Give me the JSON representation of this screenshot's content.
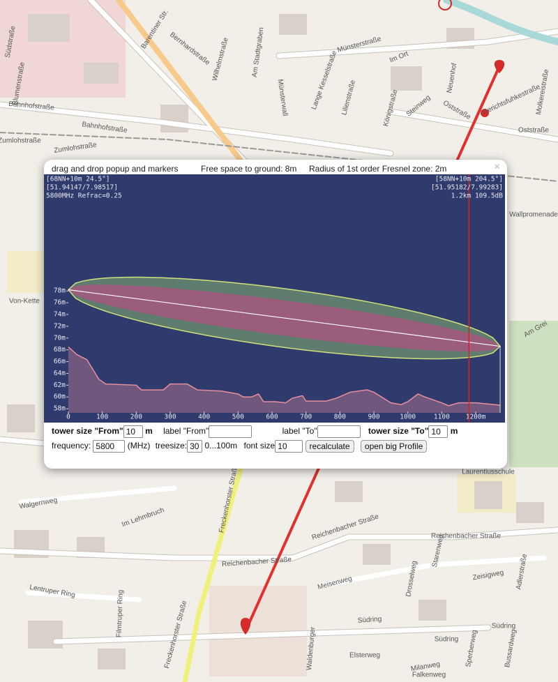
{
  "map": {
    "labels": [
      "Südstraße",
      "Barentiner Str.",
      "Bernhardstraße",
      "Wilhelmstraße",
      "Am Stadtgraben",
      "Münsterstraße",
      "Im Ort",
      "Münsterwall",
      "Lange Kesselstraße",
      "Lilienstraße",
      "Königstraße",
      "Steinweg",
      "Neuenhof",
      "Oststraße",
      "Gerichtsfuhkestraße",
      "Molkereistraße",
      "Oststraße",
      "Blumenstraße",
      "Bahnhofstraße",
      "Bahnhofstraße",
      "Zumlohstraße",
      "Zumlohstraße",
      "Wallpromenade",
      "Am Grei",
      "Von-Kette",
      "Walgernweg",
      "Im Lehmbruch",
      "Freckenhorster Straße",
      "Reichenbacher Straße",
      "Reichenbacher Straße",
      "Reichenbacher Straße",
      "Laurentiusschule",
      "Lentruper Ring",
      "Filmtruper Ring",
      "Freckenhorster Straße",
      "Meisenweg",
      "Drosselweg",
      "Starenweg",
      "Zeisigweg",
      "Adlerstraße",
      "Südring",
      "Südring",
      "Südring",
      "Elsterweg",
      "Milanweg",
      "Falkenweg",
      "Sperberweg",
      "Bussardweg",
      "Waldenburger"
    ]
  },
  "popup": {
    "drag_hint": "drag and drop popup and markers",
    "free_space": "Free space to ground: 8m",
    "fresnel_radius": "Radius of 1st order Fresnel zone: 2m",
    "close": "×",
    "form": {
      "tower_from": "tower size \"From\"",
      "tower_from_value": "10",
      "unit_m_1": "m",
      "label_from": "label \"From\"",
      "label_to": "label \"To\"",
      "tower_to": "tower size \"To\"",
      "tower_to_value": "10",
      "unit_m_2": "m",
      "frequency": "frequency:",
      "frequency_value": "5800",
      "mhz": "(MHz)",
      "treesize": "treesize:",
      "treesize_value": "30",
      "treesize_range": "0...100m",
      "font_size": "font size",
      "font_size_value": "10",
      "recalculate": "recalculate",
      "open_big": "open big Profile"
    }
  },
  "chart_data": {
    "type": "line",
    "info_left": [
      "[68NN+10m 24.5°]",
      "[51.94147/7.98517]",
      "5800MHz Refrac=0.25"
    ],
    "info_right": [
      "[58NN+10m 204.5°]",
      "[51.95182/7.99283]",
      "1.2km 109.5dB"
    ],
    "x": [
      0,
      25,
      55,
      90,
      110,
      200,
      215,
      280,
      300,
      350,
      380,
      450,
      500,
      515,
      540,
      560,
      575,
      610,
      640,
      660,
      690,
      700,
      760,
      790,
      830,
      880,
      900,
      950,
      980,
      1000,
      1030,
      1050,
      1100,
      1120,
      1150,
      1200,
      1272
    ],
    "series": [
      {
        "color": "#e8909c",
        "values": [
          68.5,
          67.2,
          66.3,
          63,
          62.2,
          62,
          61.2,
          61.2,
          62.2,
          62.2,
          61.2,
          61,
          60.5,
          60,
          60,
          60.5,
          59.2,
          59.2,
          59,
          59.8,
          60.2,
          59.3,
          59.3,
          59.8,
          60.8,
          61.2,
          60.8,
          59,
          58.7,
          59.2,
          60.5,
          60,
          59,
          58.5,
          59,
          59,
          58.6
        ]
      }
    ],
    "line_of_sight": {
      "color": "#ffffff",
      "x": [
        0,
        1272
      ],
      "values": [
        78.2,
        68.6
      ]
    },
    "fresnel_halfwidth": [
      5,
      3
    ],
    "cursor_x": 1180,
    "xlim": [
      0,
      1278
    ],
    "ylim": [
      57.3,
      97.8
    ],
    "xticks": [
      0,
      100,
      200,
      300,
      400,
      500,
      600,
      700,
      800,
      900,
      1000,
      1100,
      {
        "value": 1200,
        "label": "1200m"
      }
    ],
    "yticks": [
      {
        "value": 58,
        "label": "58m"
      },
      {
        "value": 60,
        "label": "60m"
      },
      {
        "value": 62,
        "label": "62m"
      },
      {
        "value": 64,
        "label": "64m"
      },
      {
        "value": 66,
        "label": "66m"
      },
      {
        "value": 68,
        "label": "68m"
      },
      {
        "value": 70,
        "label": "70m"
      },
      {
        "value": 72,
        "label": "72m"
      },
      {
        "value": 74,
        "label": "74m"
      },
      {
        "value": 76,
        "label": "76m"
      },
      {
        "value": 78,
        "label": "78m"
      }
    ]
  }
}
